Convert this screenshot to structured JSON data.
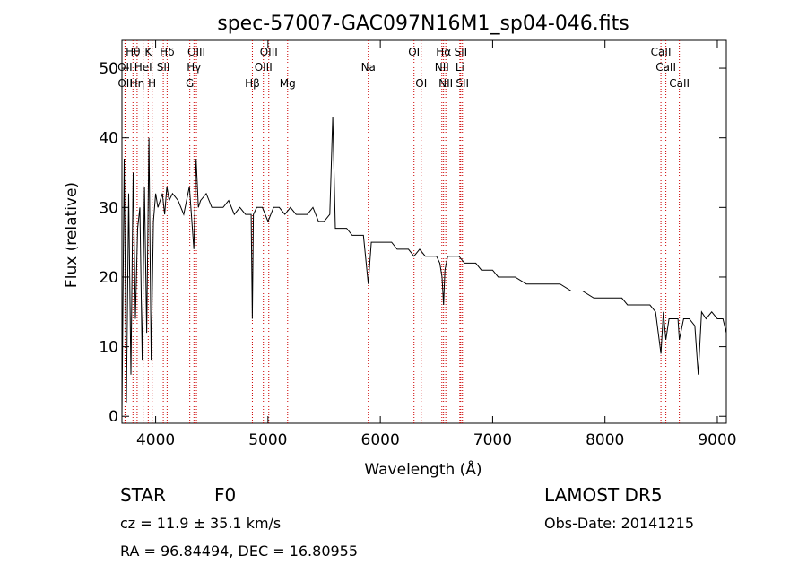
{
  "chart_data": {
    "type": "line",
    "title": "spec-57007-GAC097N16M1_sp04-046.fits",
    "xlabel": "Wavelength (Å)",
    "ylabel": "Flux (relative)",
    "xlim": [
      3700,
      9080
    ],
    "ylim": [
      -1,
      54
    ],
    "xticks": [
      4000,
      5000,
      6000,
      7000,
      8000,
      9000
    ],
    "yticks": [
      0,
      10,
      20,
      30,
      40,
      50
    ],
    "grid": false,
    "line_color": "#000000",
    "marker_color": "#cc0000",
    "series": [
      {
        "x": [
          3700,
          3720,
          3740,
          3760,
          3780,
          3800,
          3820,
          3840,
          3860,
          3880,
          3900,
          3920,
          3940,
          3960,
          3980,
          4000,
          4020,
          4040,
          4060,
          4080,
          4100,
          4120,
          4150,
          4200,
          4250,
          4300,
          4340,
          4360,
          4380,
          4400,
          4450,
          4500,
          4550,
          4600,
          4650,
          4700,
          4750,
          4800,
          4850,
          4861,
          4870,
          4900,
          4950,
          5000,
          5050,
          5100,
          5150,
          5200,
          5250,
          5300,
          5350,
          5400,
          5450,
          5500,
          5550,
          5577,
          5600,
          5650,
          5700,
          5750,
          5800,
          5850,
          5893,
          5920,
          5950,
          6000,
          6050,
          6100,
          6150,
          6200,
          6250,
          6300,
          6350,
          6400,
          6450,
          6500,
          6530,
          6550,
          6563,
          6575,
          6600,
          6650,
          6700,
          6750,
          6800,
          6850,
          6900,
          6950,
          7000,
          7050,
          7100,
          7150,
          7200,
          7300,
          7400,
          7500,
          7600,
          7700,
          7800,
          7900,
          8000,
          8100,
          8150,
          8200,
          8250,
          8300,
          8350,
          8400,
          8450,
          8498,
          8520,
          8542,
          8570,
          8600,
          8650,
          8662,
          8700,
          8750,
          8800,
          8830,
          8860,
          8900,
          8950,
          9000,
          9050,
          9080
        ],
        "y": [
          0,
          37,
          2,
          32,
          6,
          35,
          14,
          27,
          30,
          8,
          33,
          12,
          40,
          8,
          28,
          32,
          30,
          31,
          32,
          29,
          33,
          31,
          32,
          31,
          29,
          33,
          24,
          37,
          30,
          31,
          32,
          30,
          30,
          30,
          31,
          29,
          30,
          29,
          29,
          14,
          29,
          30,
          30,
          28,
          30,
          30,
          29,
          30,
          29,
          29,
          29,
          30,
          28,
          28,
          29,
          43,
          27,
          27,
          27,
          26,
          26,
          26,
          19,
          25,
          25,
          25,
          25,
          25,
          24,
          24,
          24,
          23,
          24,
          23,
          23,
          23,
          22,
          20,
          16,
          21,
          23,
          23,
          23,
          22,
          22,
          22,
          21,
          21,
          21,
          20,
          20,
          20,
          20,
          19,
          19,
          19,
          19,
          18,
          18,
          17,
          17,
          17,
          17,
          16,
          16,
          16,
          16,
          16,
          15,
          9,
          15,
          11,
          14,
          14,
          14,
          11,
          14,
          14,
          13,
          6,
          15,
          14,
          15,
          14,
          14,
          12
        ]
      }
    ],
    "line_markers": [
      {
        "label": "Hθ",
        "x": 3798,
        "row": 1
      },
      {
        "label": "OII",
        "x": 3727,
        "row": 2
      },
      {
        "label": "OII",
        "x": 3729,
        "row": 3
      },
      {
        "label": "HeI",
        "x": 3889,
        "row": 2
      },
      {
        "label": "Hη",
        "x": 3835,
        "row": 3
      },
      {
        "label": "K",
        "x": 3934,
        "row": 1
      },
      {
        "label": "SII",
        "x": 4068,
        "row": 2
      },
      {
        "label": "H",
        "x": 3969,
        "row": 3
      },
      {
        "label": "Hδ",
        "x": 4102,
        "row": 1
      },
      {
        "label": "OIII",
        "x": 4363,
        "row": 1
      },
      {
        "label": "Hγ",
        "x": 4341,
        "row": 2
      },
      {
        "label": "G",
        "x": 4304,
        "row": 3
      },
      {
        "label": "OIII",
        "x": 5007,
        "row": 1
      },
      {
        "label": "OIII",
        "x": 4959,
        "row": 2
      },
      {
        "label": "Hβ",
        "x": 4861,
        "row": 3
      },
      {
        "label": "Mg",
        "x": 5175,
        "row": 3
      },
      {
        "label": "Na",
        "x": 5893,
        "row": 2
      },
      {
        "label": "OI",
        "x": 6300,
        "row": 1
      },
      {
        "label": "OI",
        "x": 6364,
        "row": 3
      },
      {
        "label": "Hα",
        "x": 6563,
        "row": 1
      },
      {
        "label": "NII",
        "x": 6548,
        "row": 2
      },
      {
        "label": "NII",
        "x": 6583,
        "row": 3
      },
      {
        "label": "SII",
        "x": 6716,
        "row": 1
      },
      {
        "label": "Li",
        "x": 6708,
        "row": 2
      },
      {
        "label": "SII",
        "x": 6731,
        "row": 3
      },
      {
        "label": "CaII",
        "x": 8498,
        "row": 1
      },
      {
        "label": "CaII",
        "x": 8542,
        "row": 2
      },
      {
        "label": "CaII",
        "x": 8662,
        "row": 3
      }
    ]
  },
  "info": {
    "object_class": "STAR",
    "subclass": "F0",
    "survey": "LAMOST  DR5",
    "redshift": "cz = 11.9 ± 35.1 km/s",
    "obs_date": "Obs-Date: 20141215",
    "coords": "RA =  96.84494, DEC =  16.80955"
  }
}
